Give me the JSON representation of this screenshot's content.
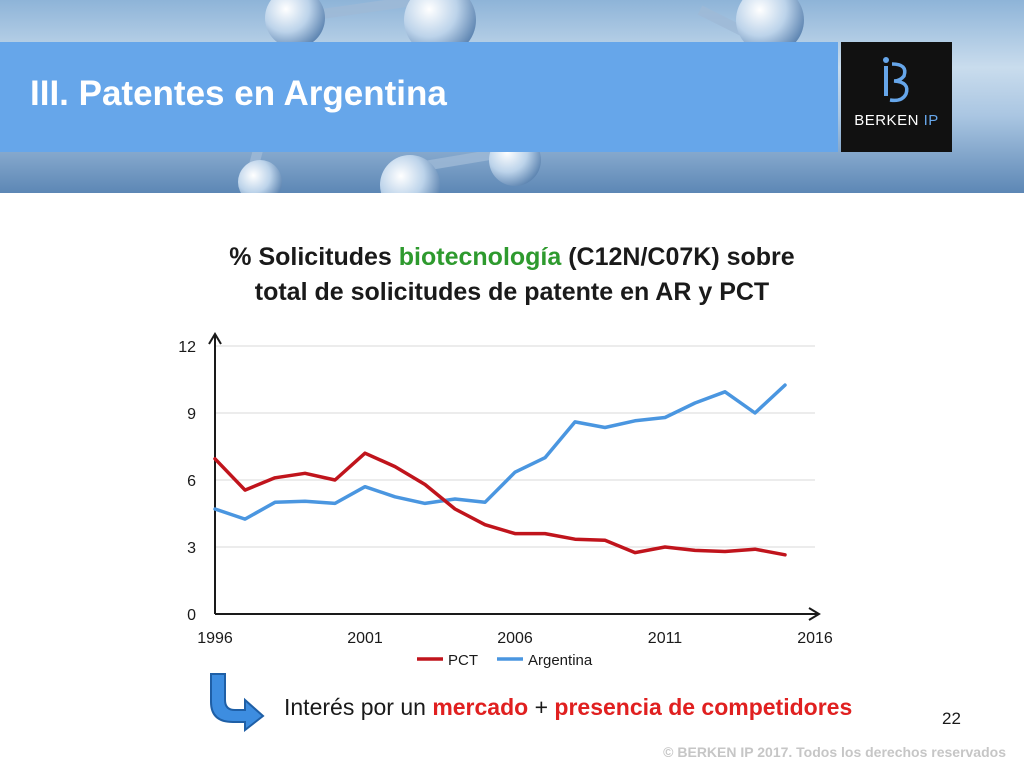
{
  "header": {
    "title": "III. Patentes en Argentina",
    "logo_brand": "BERKEN",
    "logo_suffix": "IP",
    "logo_mark_icon": "berken-ib-monogram-icon",
    "colors": {
      "title_bar": "#66a6ea",
      "logo_bg": "#111111"
    }
  },
  "chart_heading": {
    "part1": "% Solicitudes ",
    "accent": "biotecnología",
    "part2": " (C12N/C07K) sobre",
    "line2": "total de solicitudes de patente en AR y PCT",
    "accent_color": "#2e9a2e"
  },
  "chart_data": {
    "type": "line",
    "title": "% Solicitudes biotecnología (C12N/C07K) sobre total de solicitudes de patente en AR y PCT",
    "xlabel": "",
    "ylabel": "",
    "xlim": [
      1996,
      2016
    ],
    "ylim": [
      0,
      12
    ],
    "x_ticks": [
      1996,
      2001,
      2006,
      2011,
      2016
    ],
    "y_ticks": [
      0,
      3,
      6,
      9,
      12
    ],
    "grid": "horizontal",
    "legend": "bottom-center",
    "x": [
      1996,
      1997,
      1998,
      1999,
      2000,
      2001,
      2002,
      2003,
      2004,
      2005,
      2006,
      2007,
      2008,
      2009,
      2010,
      2011,
      2012,
      2013,
      2014,
      2015
    ],
    "series": [
      {
        "name": "PCT",
        "color": "#c0141c",
        "values": [
          6.95,
          5.55,
          6.1,
          6.3,
          6.0,
          7.2,
          6.6,
          5.8,
          4.7,
          4.0,
          3.6,
          3.6,
          3.35,
          3.3,
          2.75,
          3.0,
          2.85,
          2.8,
          2.9,
          2.65
        ]
      },
      {
        "name": "Argentina",
        "color": "#4a96e0",
        "values": [
          4.7,
          4.25,
          5.0,
          5.05,
          4.95,
          5.7,
          5.25,
          4.95,
          5.15,
          5.0,
          6.35,
          7.0,
          8.6,
          8.35,
          8.65,
          8.8,
          9.45,
          9.95,
          9.0,
          10.25
        ]
      }
    ]
  },
  "bottom": {
    "arrow_icon": "curved-arrow-down-right-icon",
    "part1": "Interés por un ",
    "red1": "mercado",
    "part2": " + ",
    "red2": "presencia de competidores"
  },
  "page_number": "22",
  "copyright": "© BERKEN IP 2017. Todos los derechos reservados"
}
